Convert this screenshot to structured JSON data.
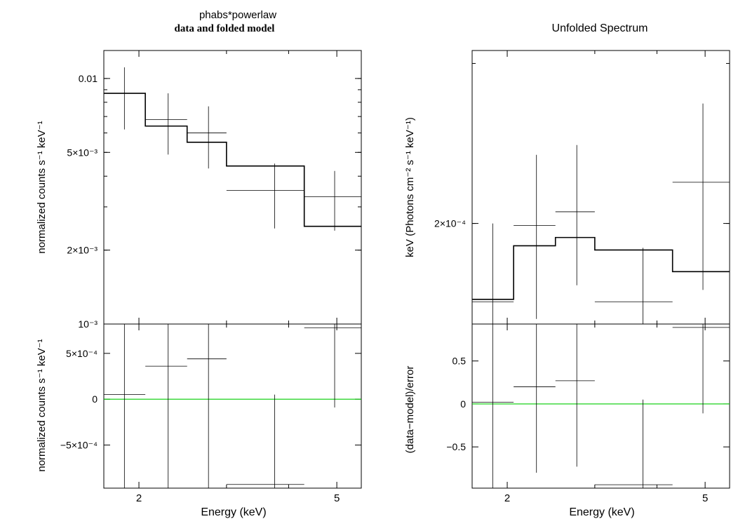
{
  "chart_data": [
    {
      "panel": "left-top",
      "type": "line",
      "title_line1": "phabs*powerlaw",
      "title_line2": "data and folded model",
      "ylabel": "normalized counts s⁻¹ keV⁻¹",
      "yscale": "log",
      "xscale": "log",
      "xlim": [
        1.7,
        5.6
      ],
      "ylim": [
        0.001,
        0.013
      ],
      "yticks": [
        {
          "v": 0.01,
          "t": "0.01"
        },
        {
          "v": 0.005,
          "t": "5×10⁻³"
        },
        {
          "v": 0.002,
          "t": "2×10⁻³"
        },
        {
          "v": 0.001,
          "t": "10⁻³"
        }
      ],
      "data": [
        {
          "xlo": 1.7,
          "xhi": 2.06,
          "x": 1.87,
          "y": 0.0087,
          "ylo": 0.0062,
          "yhi": 0.0111
        },
        {
          "xlo": 2.06,
          "xhi": 2.5,
          "x": 2.29,
          "y": 0.0068,
          "ylo": 0.0049,
          "yhi": 0.0087
        },
        {
          "xlo": 2.5,
          "xhi": 3.0,
          "x": 2.76,
          "y": 0.006,
          "ylo": 0.0043,
          "yhi": 0.0077
        },
        {
          "xlo": 3.0,
          "xhi": 4.3,
          "x": 3.75,
          "y": 0.0035,
          "ylo": 0.00245,
          "yhi": 0.0045
        },
        {
          "xlo": 4.3,
          "xhi": 5.6,
          "x": 4.95,
          "y": 0.0033,
          "ylo": 0.0024,
          "yhi": 0.0042
        }
      ],
      "model": [
        {
          "xlo": 1.7,
          "xhi": 2.06,
          "y": 0.0087
        },
        {
          "xlo": 2.06,
          "xhi": 2.5,
          "y": 0.0064
        },
        {
          "xlo": 2.5,
          "xhi": 3.0,
          "y": 0.0055
        },
        {
          "xlo": 3.0,
          "xhi": 4.3,
          "y": 0.0044
        },
        {
          "xlo": 4.3,
          "xhi": 5.6,
          "y": 0.0025
        }
      ]
    },
    {
      "panel": "left-bottom",
      "type": "scatter",
      "xlabel": "Energy (keV)",
      "ylabel": "normalized counts s⁻¹ keV⁻¹",
      "xscale": "log",
      "xlim": [
        1.7,
        5.6
      ],
      "ylim": [
        -0.00097,
        0.00082
      ],
      "yticks": [
        {
          "v": 0.0005,
          "t": "5×10⁻⁴"
        },
        {
          "v": 0,
          "t": "0"
        },
        {
          "v": -0.0005,
          "t": "−5×10⁻⁴"
        }
      ],
      "xticks": [
        {
          "v": 2,
          "t": "2"
        },
        {
          "v": 5,
          "t": "5"
        }
      ],
      "zero_line_color": "#00cc00",
      "data": [
        {
          "xlo": 1.7,
          "xhi": 2.06,
          "x": 1.87,
          "y": 5e-05,
          "ylo": -0.00097,
          "yhi": 0.00082
        },
        {
          "xlo": 2.06,
          "xhi": 2.5,
          "x": 2.29,
          "y": 0.00036,
          "ylo": -0.00097,
          "yhi": 0.00082
        },
        {
          "xlo": 2.5,
          "xhi": 3.0,
          "x": 2.76,
          "y": 0.00044,
          "ylo": -0.00097,
          "yhi": 0.00082
        },
        {
          "xlo": 3.0,
          "xhi": 4.3,
          "x": 3.75,
          "y": -0.00093,
          "ylo": -0.00097,
          "yhi": 5e-05
        },
        {
          "xlo": 4.3,
          "xhi": 5.6,
          "x": 4.95,
          "y": 0.00078,
          "ylo": -9e-05,
          "yhi": 0.00082
        }
      ]
    },
    {
      "panel": "right-top",
      "type": "line",
      "title": "Unfolded Spectrum",
      "ylabel": "keV (Photons cm⁻² s⁻¹ keV⁻¹)",
      "yscale": "log",
      "xscale": "log",
      "xlim": [
        1.7,
        5.6
      ],
      "ylim": [
        0.000155,
        0.00031
      ],
      "yticks": [
        {
          "v": 0.0002,
          "t": "2×10⁻⁴"
        }
      ],
      "data": [
        {
          "xlo": 1.7,
          "xhi": 2.06,
          "x": 1.87,
          "y": 0.000164,
          "ylo": 0.000155,
          "yhi": 0.0002
        },
        {
          "xlo": 2.06,
          "xhi": 2.5,
          "x": 2.29,
          "y": 0.000199,
          "ylo": 0.000157,
          "yhi": 0.000238
        },
        {
          "xlo": 2.5,
          "xhi": 3.0,
          "x": 2.76,
          "y": 0.000206,
          "ylo": 0.000171,
          "yhi": 0.000244
        },
        {
          "xlo": 3.0,
          "xhi": 4.3,
          "x": 3.75,
          "y": 0.000164,
          "ylo": 0.000155,
          "yhi": 0.000188
        },
        {
          "xlo": 4.3,
          "xhi": 5.6,
          "x": 4.95,
          "y": 0.000222,
          "ylo": 0.000169,
          "yhi": 0.000271
        }
      ],
      "model": [
        {
          "xlo": 1.7,
          "xhi": 2.06,
          "y": 0.000165
        },
        {
          "xlo": 2.06,
          "xhi": 2.5,
          "y": 0.000189
        },
        {
          "xlo": 2.5,
          "xhi": 3.0,
          "y": 0.000193
        },
        {
          "xlo": 3.0,
          "xhi": 4.3,
          "y": 0.000187
        },
        {
          "xlo": 4.3,
          "xhi": 5.6,
          "y": 0.000177
        }
      ]
    },
    {
      "panel": "right-bottom",
      "type": "scatter",
      "xlabel": "Energy (keV)",
      "ylabel": "(data−model)/error",
      "xscale": "log",
      "xlim": [
        1.7,
        5.6
      ],
      "ylim": [
        -0.98,
        0.93
      ],
      "yticks": [
        {
          "v": 0.5,
          "t": "0.5"
        },
        {
          "v": 0,
          "t": "0"
        },
        {
          "v": -0.5,
          "t": "−0.5"
        }
      ],
      "xticks": [
        {
          "v": 2,
          "t": "2"
        },
        {
          "v": 5,
          "t": "5"
        }
      ],
      "zero_line_color": "#00cc00",
      "data": [
        {
          "xlo": 1.7,
          "xhi": 2.06,
          "x": 1.87,
          "y": 0.02,
          "ylo": -0.98,
          "yhi": 0.93
        },
        {
          "xlo": 2.06,
          "xhi": 2.5,
          "x": 2.29,
          "y": 0.2,
          "ylo": -0.8,
          "yhi": 0.93
        },
        {
          "xlo": 2.5,
          "xhi": 3.0,
          "x": 2.76,
          "y": 0.27,
          "ylo": -0.73,
          "yhi": 0.93
        },
        {
          "xlo": 3.0,
          "xhi": 4.3,
          "x": 3.75,
          "y": -0.94,
          "ylo": -0.98,
          "yhi": 0.05
        },
        {
          "xlo": 4.3,
          "xhi": 5.6,
          "x": 4.95,
          "y": 0.89,
          "ylo": -0.11,
          "yhi": 0.93
        }
      ]
    }
  ]
}
